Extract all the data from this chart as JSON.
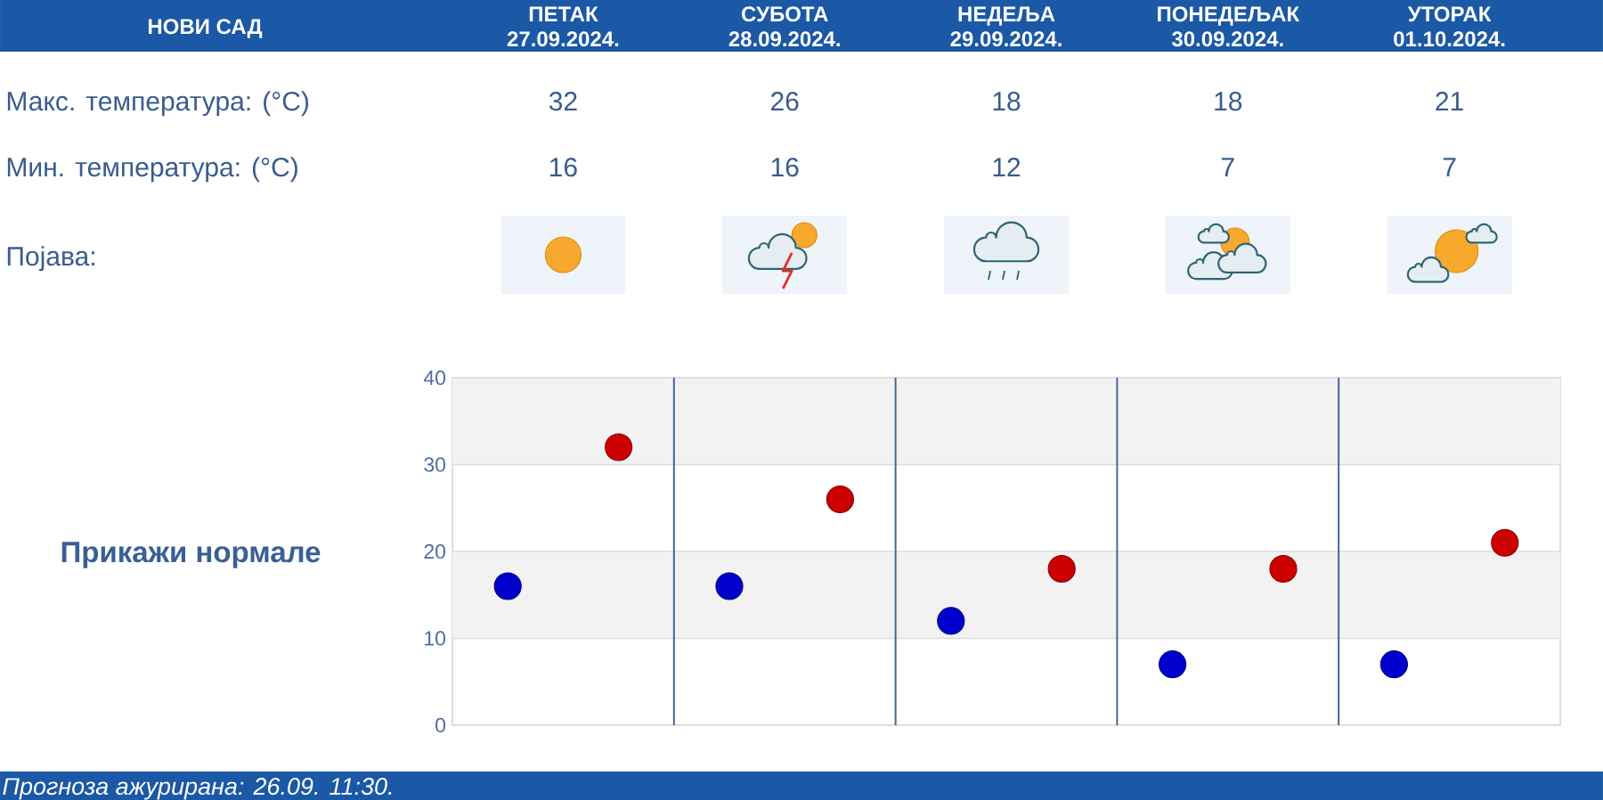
{
  "chart_data": {
    "type": "scatter",
    "title": "НОВИ САД",
    "categories": [
      null,
      null,
      null,
      null,
      null
    ],
    "series": [
      {
        "color": "#cc0000",
        "values": [
          32,
          26,
          18,
          18,
          21
        ]
      },
      {
        "color": "#0000cc",
        "values": [
          16,
          16,
          12,
          7,
          7
        ]
      }
    ],
    "ylim": [
      0,
      40
    ],
    "yticks": [
      0,
      10,
      20,
      30,
      40
    ],
    "grid": true,
    "marker": "circle",
    "data_labels": true,
    "tick_labels": "y",
    "bands": [
      {
        "axis": "y",
        "from": 30,
        "to": 40,
        "color": "#f2f2f2"
      },
      {
        "axis": "y",
        "from": 10,
        "to": 20,
        "color": "#f2f2f2"
      }
    ],
    "annotations": [
      "ПЕТАК",
      "СУБОТА",
      "НЕДЕЉА",
      "ПОНЕДЕЉАК",
      "УТОРАК",
      "27.09.2024.",
      "28.09.2024.",
      "29.09.2024.",
      "30.09.2024.",
      "01.10.2024.",
      "Макс. температура: (°C)",
      "Мин. температура: (°C)",
      "Појава:",
      "Прикажи нормале",
      "Прогноза ажурирана:  26.09. 11:30."
    ]
  }
}
